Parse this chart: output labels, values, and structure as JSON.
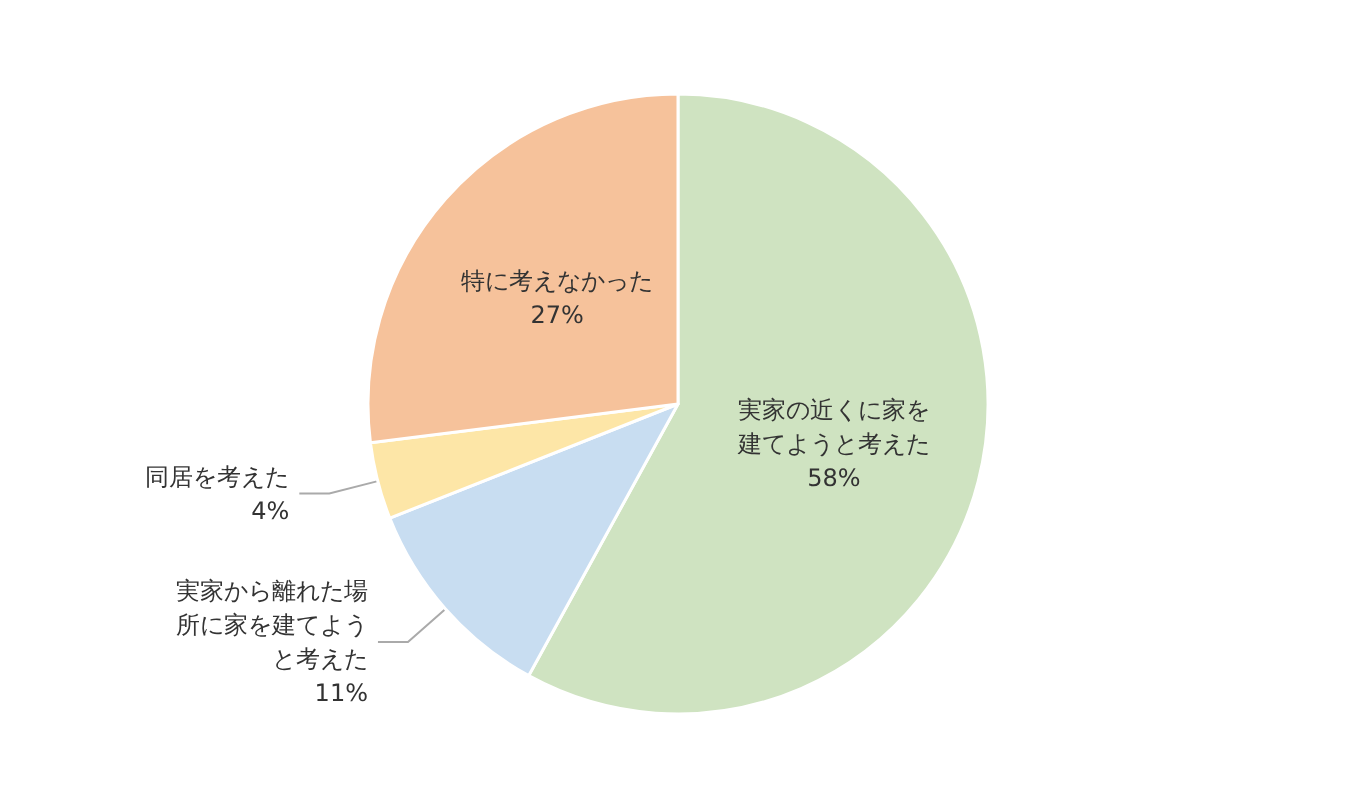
{
  "chart_data": {
    "type": "pie",
    "categories": [
      "実家の近くに家を建てようと考えた",
      "実家から離れた場所に家を建てようと考えた",
      "同居を考えた",
      "特に考えなかった"
    ],
    "values": [
      58,
      11,
      4,
      27
    ],
    "colors": [
      "#cfe3c1",
      "#c8ddf1",
      "#fde6a7",
      "#f6c29b"
    ],
    "value_labels": [
      "58%",
      "11%",
      "4%",
      "27%"
    ],
    "legend": false
  }
}
